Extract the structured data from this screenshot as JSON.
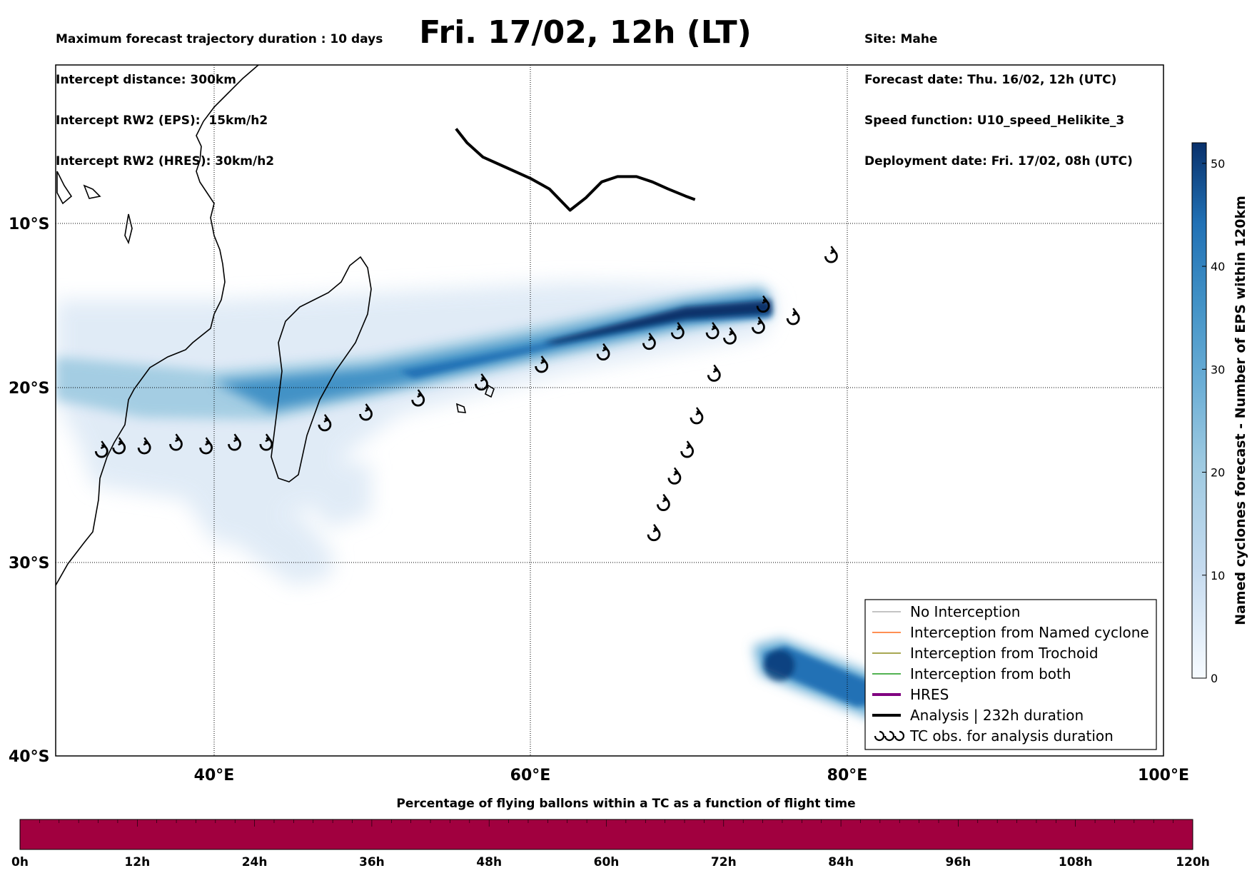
{
  "header": {
    "title": "Fri. 17/02, 12h (LT)",
    "left_lines": [
      "Maximum forecast trajectory duration : 10 days",
      "Intercept distance: 300km",
      "Intercept RW2 (EPS):  15km/h2",
      "Intercept RW2 (HRES): 30km/h2"
    ],
    "right_lines": [
      "Site: Mahe",
      "Forecast date: Thu. 16/02, 12h (UTC)",
      "Speed function: U10_speed_Helikite_3",
      "Deployment date: Fri. 17/02, 08h (UTC)"
    ]
  },
  "map": {
    "lon_range": [
      30,
      100
    ],
    "lat_range": [
      -40,
      -1
    ],
    "lon_labels": [
      "40°E",
      "60°E",
      "80°E",
      "100°E"
    ],
    "lat_labels": [
      "10°S",
      "20°S",
      "30°S",
      "40°S"
    ],
    "analysis_track_lonlat": [
      [
        55.3,
        -4.6
      ],
      [
        56.0,
        -5.4
      ],
      [
        57.0,
        -6.2
      ],
      [
        58.5,
        -6.8
      ],
      [
        60.0,
        -7.4
      ],
      [
        61.2,
        -8.0
      ],
      [
        62.5,
        -9.2
      ],
      [
        63.5,
        -8.5
      ],
      [
        64.5,
        -7.6
      ],
      [
        65.5,
        -7.3
      ],
      [
        66.7,
        -7.3
      ],
      [
        67.7,
        -7.6
      ],
      [
        68.7,
        -8.0
      ],
      [
        69.8,
        -8.4
      ],
      [
        70.4,
        -8.6
      ]
    ],
    "tc_obs_lonlat": [
      [
        32.9,
        -22.8
      ],
      [
        34.0,
        -22.6
      ],
      [
        35.6,
        -22.6
      ],
      [
        37.6,
        -22.4
      ],
      [
        39.5,
        -22.6
      ],
      [
        41.3,
        -22.4
      ],
      [
        43.3,
        -22.4
      ],
      [
        47.0,
        -21.3
      ],
      [
        49.6,
        -20.7
      ],
      [
        52.9,
        -19.9
      ],
      [
        56.9,
        -19.0
      ],
      [
        60.7,
        -18.0
      ],
      [
        64.6,
        -17.3
      ],
      [
        67.5,
        -16.7
      ],
      [
        69.3,
        -16.1
      ],
      [
        71.5,
        -16.1
      ],
      [
        72.6,
        -16.4
      ],
      [
        74.4,
        -15.8
      ],
      [
        74.7,
        -14.6
      ],
      [
        76.6,
        -15.3
      ],
      [
        79.0,
        -11.8
      ],
      [
        71.6,
        -18.5
      ],
      [
        70.5,
        -20.9
      ],
      [
        69.9,
        -22.8
      ],
      [
        69.1,
        -24.3
      ],
      [
        68.4,
        -25.8
      ],
      [
        67.8,
        -27.5
      ]
    ],
    "density_max_color": "#08306b",
    "density_min_color": "#deebf7"
  },
  "legend": {
    "items": [
      {
        "label": "No Interception",
        "color": "#888888",
        "width": 1
      },
      {
        "label": "Interception from Named cyclone",
        "color": "#ff6a1a",
        "width": 1.5
      },
      {
        "label": "Interception from Trochoid",
        "color": "#8b8b1a",
        "width": 1.5
      },
      {
        "label": "Interception from both",
        "color": "#1a9a1a",
        "width": 1.5
      },
      {
        "label": "HRES",
        "color": "#800080",
        "width": 4
      },
      {
        "label": "Analysis | 232h duration",
        "color": "#000000",
        "width": 4
      },
      {
        "label": "TC obs. for analysis duration",
        "color": "#000000",
        "width": 0
      }
    ]
  },
  "colorbar": {
    "label": "Named cyclones forecast - Number of EPS within 120km",
    "min": 0,
    "max": 52,
    "ticks": [
      "0",
      "10",
      "20",
      "30",
      "40",
      "50"
    ]
  },
  "time_bar": {
    "title": "Percentage of flying ballons within a TC as a function of flight time",
    "color": "#a1003f",
    "ticks": [
      "0h",
      "12h",
      "24h",
      "36h",
      "48h",
      "60h",
      "72h",
      "84h",
      "96h",
      "108h",
      "120h"
    ]
  }
}
